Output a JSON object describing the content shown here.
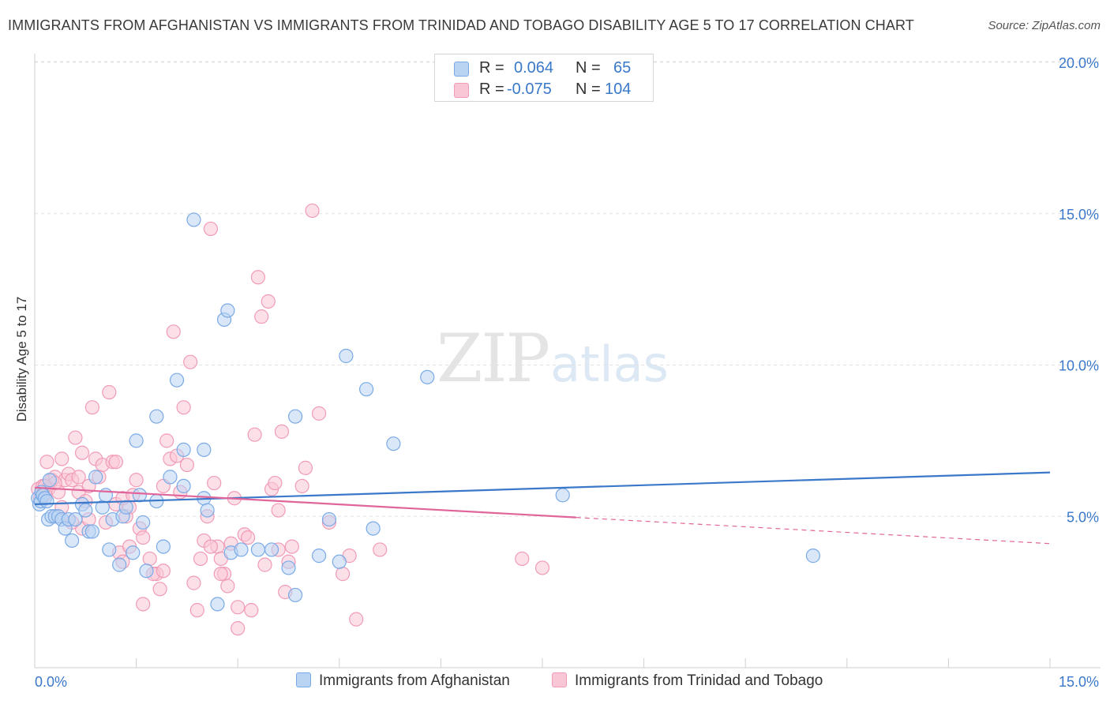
{
  "title": "IMMIGRANTS FROM AFGHANISTAN VS IMMIGRANTS FROM TRINIDAD AND TOBAGO DISABILITY AGE 5 TO 17 CORRELATION CHART",
  "source": "Source: ZipAtlas.com",
  "watermark": {
    "zip": "ZIP",
    "atlas": "atlas"
  },
  "legend": {
    "r_label": "R =",
    "n_label": "N =",
    "rows": [
      {
        "r": "0.064",
        "n": "65",
        "fill": "#b9d3f3",
        "stroke": "#7aaae6"
      },
      {
        "r": "-0.075",
        "n": "104",
        "fill": "#f9c6d6",
        "stroke": "#f19bb7"
      }
    ]
  },
  "chart_data": {
    "type": "scatter",
    "title": "IMMIGRANTS FROM AFGHANISTAN VS IMMIGRANTS FROM TRINIDAD AND TOBAGO DISABILITY AGE 5 TO 17 CORRELATION CHART",
    "xlabel": "",
    "ylabel": "Disability Age 5 to 17",
    "xlim": [
      0,
      15
    ],
    "ylim": [
      0,
      20
    ],
    "y_ticks": [
      5,
      10,
      15,
      20
    ],
    "y_tick_labels": [
      "5.0%",
      "10.0%",
      "15.0%",
      "20.0%"
    ],
    "x_tick_labels": [
      "0.0%",
      "15.0%"
    ],
    "grid": true,
    "series": [
      {
        "name": "Immigrants from Afghanistan",
        "color": "#3a78c9",
        "fill": "#b9d3f3",
        "stroke": "#7aaae6",
        "trend": {
          "x": [
            0,
            15
          ],
          "y": [
            5.4,
            6.45
          ],
          "solid_to": 15
        },
        "points": [
          [
            0.05,
            5.6
          ],
          [
            0.07,
            5.4
          ],
          [
            0.09,
            5.5
          ],
          [
            0.1,
            5.8
          ],
          [
            0.12,
            5.7
          ],
          [
            0.15,
            5.6
          ],
          [
            0.18,
            5.5
          ],
          [
            0.2,
            4.9
          ],
          [
            0.22,
            6.2
          ],
          [
            0.25,
            5.0
          ],
          [
            0.3,
            5.0
          ],
          [
            0.35,
            5.0
          ],
          [
            0.4,
            4.9
          ],
          [
            0.45,
            4.6
          ],
          [
            0.5,
            4.9
          ],
          [
            0.55,
            4.2
          ],
          [
            0.6,
            4.9
          ],
          [
            0.7,
            5.4
          ],
          [
            0.75,
            5.2
          ],
          [
            0.8,
            4.5
          ],
          [
            0.85,
            4.5
          ],
          [
            0.9,
            6.3
          ],
          [
            1.0,
            5.3
          ],
          [
            1.05,
            5.7
          ],
          [
            1.1,
            3.9
          ],
          [
            1.15,
            4.9
          ],
          [
            1.25,
            3.4
          ],
          [
            1.3,
            5.0
          ],
          [
            1.35,
            5.3
          ],
          [
            1.45,
            3.8
          ],
          [
            1.55,
            5.7
          ],
          [
            1.6,
            4.8
          ],
          [
            1.65,
            3.2
          ],
          [
            1.8,
            5.5
          ],
          [
            1.9,
            4.0
          ],
          [
            2.0,
            6.3
          ],
          [
            2.1,
            9.5
          ],
          [
            2.2,
            6.0
          ],
          [
            2.35,
            14.8
          ],
          [
            2.5,
            5.6
          ],
          [
            2.55,
            5.2
          ],
          [
            2.7,
            2.1
          ],
          [
            2.9,
            3.8
          ],
          [
            3.05,
            3.9
          ],
          [
            3.3,
            3.9
          ],
          [
            3.5,
            3.9
          ],
          [
            3.75,
            3.3
          ],
          [
            3.85,
            2.4
          ],
          [
            4.2,
            3.7
          ],
          [
            4.5,
            3.5
          ],
          [
            4.6,
            10.3
          ],
          [
            4.9,
            9.2
          ],
          [
            5.0,
            4.6
          ],
          [
            5.3,
            7.4
          ],
          [
            5.8,
            9.6
          ],
          [
            7.8,
            5.7
          ],
          [
            11.5,
            3.7
          ],
          [
            1.5,
            7.5
          ],
          [
            1.8,
            8.3
          ],
          [
            2.2,
            7.2
          ],
          [
            2.5,
            7.2
          ],
          [
            2.8,
            11.5
          ],
          [
            2.85,
            11.8
          ],
          [
            3.85,
            8.3
          ],
          [
            4.35,
            4.9
          ]
        ]
      },
      {
        "name": "Immigrants from Trinidad and Tobago",
        "color": "#e0659a",
        "fill": "#f9c6d6",
        "stroke": "#f19bb7",
        "trend": {
          "x": [
            0,
            15
          ],
          "y": [
            5.95,
            4.1
          ],
          "solid_to": 8
        },
        "points": [
          [
            0.05,
            5.9
          ],
          [
            0.08,
            5.6
          ],
          [
            0.1,
            5.8
          ],
          [
            0.12,
            6.0
          ],
          [
            0.15,
            5.7
          ],
          [
            0.18,
            6.8
          ],
          [
            0.2,
            5.9
          ],
          [
            0.25,
            6.2
          ],
          [
            0.3,
            6.3
          ],
          [
            0.35,
            5.8
          ],
          [
            0.4,
            6.9
          ],
          [
            0.45,
            6.2
          ],
          [
            0.5,
            6.4
          ],
          [
            0.55,
            6.2
          ],
          [
            0.6,
            7.6
          ],
          [
            0.65,
            5.8
          ],
          [
            0.7,
            7.1
          ],
          [
            0.75,
            5.5
          ],
          [
            0.8,
            6.0
          ],
          [
            0.85,
            8.6
          ],
          [
            0.9,
            6.9
          ],
          [
            1.0,
            6.7
          ],
          [
            1.1,
            9.1
          ],
          [
            1.15,
            6.8
          ],
          [
            1.2,
            5.4
          ],
          [
            1.25,
            3.8
          ],
          [
            1.3,
            3.5
          ],
          [
            1.35,
            5.0
          ],
          [
            1.4,
            4.0
          ],
          [
            1.5,
            6.2
          ],
          [
            1.55,
            4.6
          ],
          [
            1.6,
            2.1
          ],
          [
            1.7,
            3.6
          ],
          [
            1.8,
            3.1
          ],
          [
            1.85,
            2.6
          ],
          [
            1.9,
            6.0
          ],
          [
            1.95,
            7.5
          ],
          [
            2.0,
            6.9
          ],
          [
            2.05,
            11.1
          ],
          [
            2.1,
            7.0
          ],
          [
            2.15,
            5.8
          ],
          [
            2.2,
            8.6
          ],
          [
            2.3,
            10.1
          ],
          [
            2.35,
            2.8
          ],
          [
            2.4,
            1.9
          ],
          [
            2.5,
            4.2
          ],
          [
            2.6,
            14.5
          ],
          [
            2.65,
            6.1
          ],
          [
            2.7,
            4.0
          ],
          [
            2.75,
            3.6
          ],
          [
            2.8,
            3.1
          ],
          [
            2.85,
            2.7
          ],
          [
            2.9,
            4.1
          ],
          [
            2.95,
            5.6
          ],
          [
            3.0,
            1.3
          ],
          [
            3.1,
            4.4
          ],
          [
            3.2,
            1.9
          ],
          [
            3.25,
            7.7
          ],
          [
            3.3,
            12.9
          ],
          [
            3.35,
            11.6
          ],
          [
            3.45,
            12.1
          ],
          [
            3.5,
            5.9
          ],
          [
            3.55,
            6.1
          ],
          [
            3.6,
            3.9
          ],
          [
            3.65,
            7.8
          ],
          [
            3.7,
            2.5
          ],
          [
            3.8,
            4.0
          ],
          [
            3.95,
            6.0
          ],
          [
            4.0,
            6.6
          ],
          [
            4.1,
            15.1
          ],
          [
            4.2,
            8.4
          ],
          [
            4.35,
            4.8
          ],
          [
            4.55,
            3.1
          ],
          [
            4.65,
            3.7
          ],
          [
            4.75,
            1.6
          ],
          [
            5.1,
            3.9
          ],
          [
            7.2,
            3.6
          ],
          [
            7.5,
            3.3
          ],
          [
            0.95,
            6.3
          ],
          [
            1.05,
            4.8
          ],
          [
            0.7,
            4.6
          ],
          [
            1.4,
            5.3
          ],
          [
            1.6,
            4.3
          ],
          [
            1.75,
            3.1
          ],
          [
            1.9,
            3.2
          ],
          [
            2.25,
            6.7
          ],
          [
            2.45,
            3.6
          ],
          [
            2.55,
            5.0
          ],
          [
            2.6,
            4.0
          ],
          [
            2.75,
            3.1
          ],
          [
            3.0,
            2.0
          ],
          [
            3.15,
            4.3
          ],
          [
            3.4,
            3.4
          ],
          [
            3.6,
            5.2
          ],
          [
            3.75,
            3.5
          ],
          [
            0.4,
            5.3
          ],
          [
            0.55,
            4.8
          ],
          [
            0.65,
            6.3
          ],
          [
            0.8,
            4.9
          ],
          [
            1.2,
            6.8
          ],
          [
            1.3,
            5.6
          ],
          [
            1.45,
            5.7
          ],
          [
            0.3,
            6.1
          ],
          [
            0.15,
            6.0
          ]
        ]
      }
    ]
  }
}
